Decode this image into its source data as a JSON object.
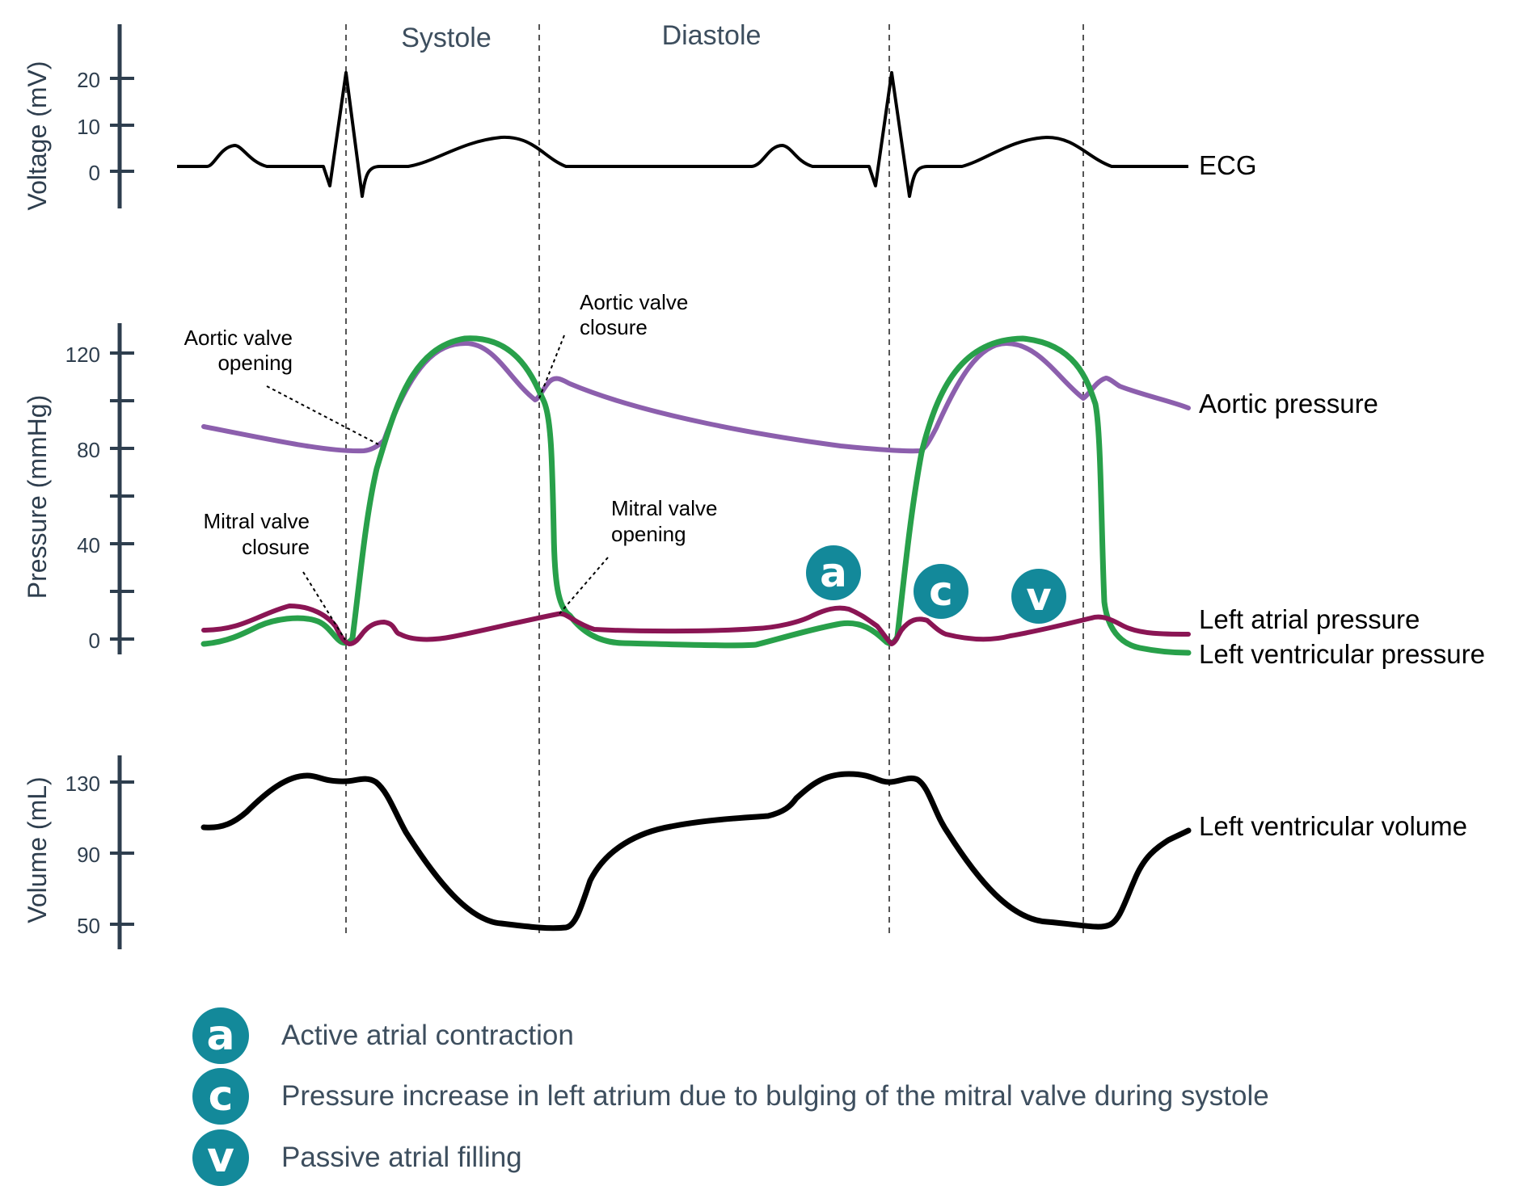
{
  "phases": {
    "systole": "Systole",
    "diastole": "Diastole"
  },
  "ecg_panel": {
    "axis_label": "Voltage (mV)",
    "ticks": [
      "20",
      "10",
      "0"
    ],
    "tick_values": [
      20,
      10,
      0
    ],
    "trace_label": "ECG"
  },
  "pressure_panel": {
    "axis_label": "Pressure (mmHg)",
    "ticks": [
      "120",
      "80",
      "40",
      "0"
    ],
    "tick_values": [
      120,
      80,
      40,
      0
    ],
    "minor_tick_values": [
      100,
      60,
      20
    ],
    "trace_labels": {
      "aortic": "Aortic pressure",
      "atrial": "Left atrial pressure",
      "ventricular": "Left ventricular pressure"
    },
    "annotations": {
      "aortic_opening": [
        "Aortic valve",
        "opening"
      ],
      "aortic_closure": [
        "Aortic valve",
        "closure"
      ],
      "mitral_closure": [
        "Mitral valve",
        "closure"
      ],
      "mitral_opening": [
        "Mitral valve",
        "opening"
      ]
    },
    "wave_markers": [
      "a",
      "c",
      "v"
    ]
  },
  "volume_panel": {
    "axis_label": "Volume (mL)",
    "ticks": [
      "130",
      "90",
      "50"
    ],
    "tick_values": [
      130,
      90,
      50
    ],
    "trace_label": "Left ventricular volume"
  },
  "legend": [
    {
      "letter": "a",
      "text": "Active atrial contraction"
    },
    {
      "letter": "c",
      "text": "Pressure increase in left atrium due to bulging of the mitral valve during systole"
    },
    {
      "letter": "v",
      "text": "Passive atrial filling"
    }
  ],
  "colors": {
    "ecg": "#000000",
    "aortic": "#8c5fad",
    "ventricular": "#28a04a",
    "atrial": "#8a1554",
    "volume": "#000000",
    "axis": "#2e3e4e",
    "badge": "#13899a",
    "text_muted": "#3d4e5e"
  },
  "icons": {
    "wave_marker": "teal-circle-badge"
  }
}
